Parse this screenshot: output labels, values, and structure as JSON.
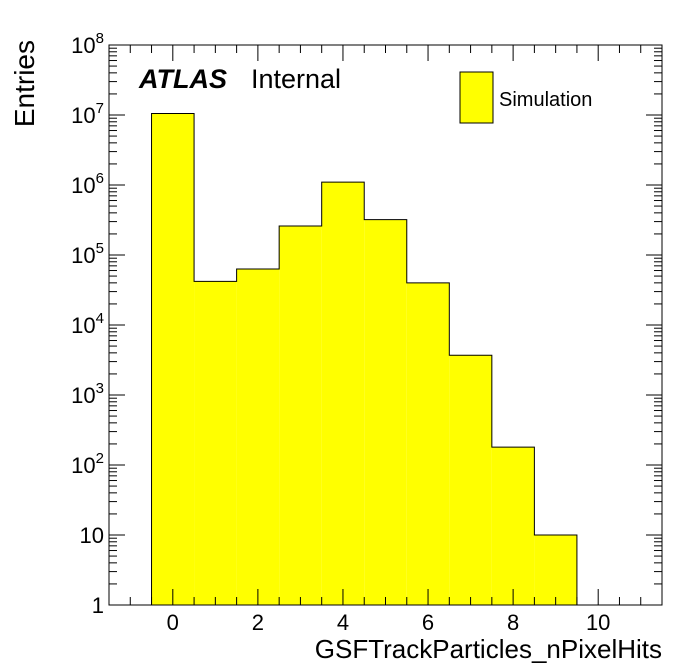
{
  "chart_data": {
    "type": "bar",
    "histogram": true,
    "xlabel": "GSFTrackParticles_nPixelHits",
    "ylabel": "Entries",
    "xlim": [
      -1.5,
      11.5
    ],
    "ylim": [
      1,
      100000000
    ],
    "yscale": "log",
    "fill_color": "#ffff00",
    "grid": false,
    "legend_position": "top-right",
    "legend": [
      "Simulation"
    ],
    "annotations": {
      "experiment": "ATLAS",
      "status": "Internal"
    },
    "x_ticks": [
      "0",
      "2",
      "4",
      "6",
      "8",
      "10"
    ],
    "x_tick_values": [
      0,
      2,
      4,
      6,
      8,
      10
    ],
    "y_tick_values": [
      1,
      10,
      100,
      1000,
      10000,
      100000,
      1000000,
      10000000,
      100000000
    ],
    "y_tick_labels": [
      {
        "base": "1",
        "exp": ""
      },
      {
        "base": "10",
        "exp": ""
      },
      {
        "base": "10",
        "exp": "2"
      },
      {
        "base": "10",
        "exp": "3"
      },
      {
        "base": "10",
        "exp": "4"
      },
      {
        "base": "10",
        "exp": "5"
      },
      {
        "base": "10",
        "exp": "6"
      },
      {
        "base": "10",
        "exp": "7"
      },
      {
        "base": "10",
        "exp": "8"
      }
    ],
    "bins": [
      {
        "x": 0,
        "low": -0.5,
        "high": 0.5,
        "value": 10500000
      },
      {
        "x": 1,
        "low": 0.5,
        "high": 1.5,
        "value": 42000
      },
      {
        "x": 2,
        "low": 1.5,
        "high": 2.5,
        "value": 63000
      },
      {
        "x": 3,
        "low": 2.5,
        "high": 3.5,
        "value": 260000
      },
      {
        "x": 4,
        "low": 3.5,
        "high": 4.5,
        "value": 1100000
      },
      {
        "x": 5,
        "low": 4.5,
        "high": 5.5,
        "value": 320000
      },
      {
        "x": 6,
        "low": 5.5,
        "high": 6.5,
        "value": 40000
      },
      {
        "x": 7,
        "low": 6.5,
        "high": 7.5,
        "value": 3700
      },
      {
        "x": 8,
        "low": 7.5,
        "high": 8.5,
        "value": 180
      },
      {
        "x": 9,
        "low": 8.5,
        "high": 9.5,
        "value": 10
      }
    ]
  }
}
